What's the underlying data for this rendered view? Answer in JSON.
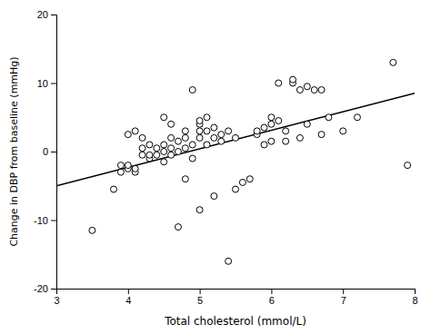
{
  "chart_data": {
    "type": "scatter",
    "xlabel": "Total cholesterol (mmol/L)",
    "ylabel": "Change in DBP from baseline (mmHg)",
    "xlim": [
      3,
      8
    ],
    "ylim": [
      -20,
      20
    ],
    "xticks": [
      3,
      4,
      5,
      6,
      7,
      8
    ],
    "yticks": [
      -20,
      -10,
      0,
      10,
      20
    ],
    "grid": false,
    "series": [
      {
        "type": "scatter",
        "marker": "hollow-circle",
        "color": "black",
        "x": [
          3.5,
          3.8,
          3.9,
          3.9,
          4.0,
          4.0,
          4.0,
          4.1,
          4.1,
          4.1,
          4.2,
          4.2,
          4.2,
          4.3,
          4.3,
          4.3,
          4.4,
          4.4,
          4.5,
          4.5,
          4.5,
          4.5,
          4.6,
          4.6,
          4.6,
          4.6,
          4.7,
          4.7,
          4.7,
          4.8,
          4.8,
          4.8,
          4.8,
          4.9,
          4.9,
          4.9,
          5.0,
          5.0,
          5.0,
          5.0,
          5.0,
          5.1,
          5.1,
          5.1,
          5.2,
          5.2,
          5.2,
          5.3,
          5.3,
          5.4,
          5.4,
          5.5,
          5.5,
          5.6,
          5.7,
          5.8,
          5.8,
          5.9,
          5.9,
          6.0,
          6.0,
          6.0,
          6.1,
          6.1,
          6.2,
          6.2,
          6.3,
          6.3,
          6.4,
          6.4,
          6.5,
          6.5,
          6.6,
          6.7,
          6.7,
          6.8,
          7.0,
          7.2,
          7.7,
          7.9
        ],
        "values": [
          -11.5,
          -5.5,
          -2.0,
          -3.0,
          -2.5,
          -2.0,
          2.5,
          -3.0,
          -2.5,
          3.0,
          -0.5,
          0.5,
          2.0,
          -1.0,
          -0.5,
          1.0,
          -0.5,
          0.5,
          -1.5,
          0.0,
          1.0,
          5.0,
          -0.5,
          0.5,
          2.0,
          4.0,
          0.0,
          1.5,
          -11.0,
          -4.0,
          0.5,
          2.0,
          3.0,
          -1.0,
          1.0,
          9.0,
          -8.5,
          2.0,
          3.0,
          4.0,
          4.5,
          1.0,
          3.0,
          5.0,
          -6.5,
          2.0,
          3.5,
          1.5,
          2.5,
          -16.0,
          3.0,
          -5.5,
          2.0,
          -4.5,
          -4.0,
          2.5,
          3.0,
          1.0,
          3.5,
          4.0,
          5.0,
          1.5,
          4.5,
          10.0,
          1.5,
          3.0,
          10.0,
          10.5,
          2.0,
          9.0,
          9.5,
          4.0,
          9.0,
          2.5,
          9.0,
          5.0,
          3.0,
          5.0,
          13.0,
          -2.0
        ]
      },
      {
        "type": "line",
        "line_style": "solid",
        "color": "black",
        "x": [
          3.0,
          8.0
        ],
        "values": [
          -5.0,
          8.5
        ]
      }
    ]
  }
}
